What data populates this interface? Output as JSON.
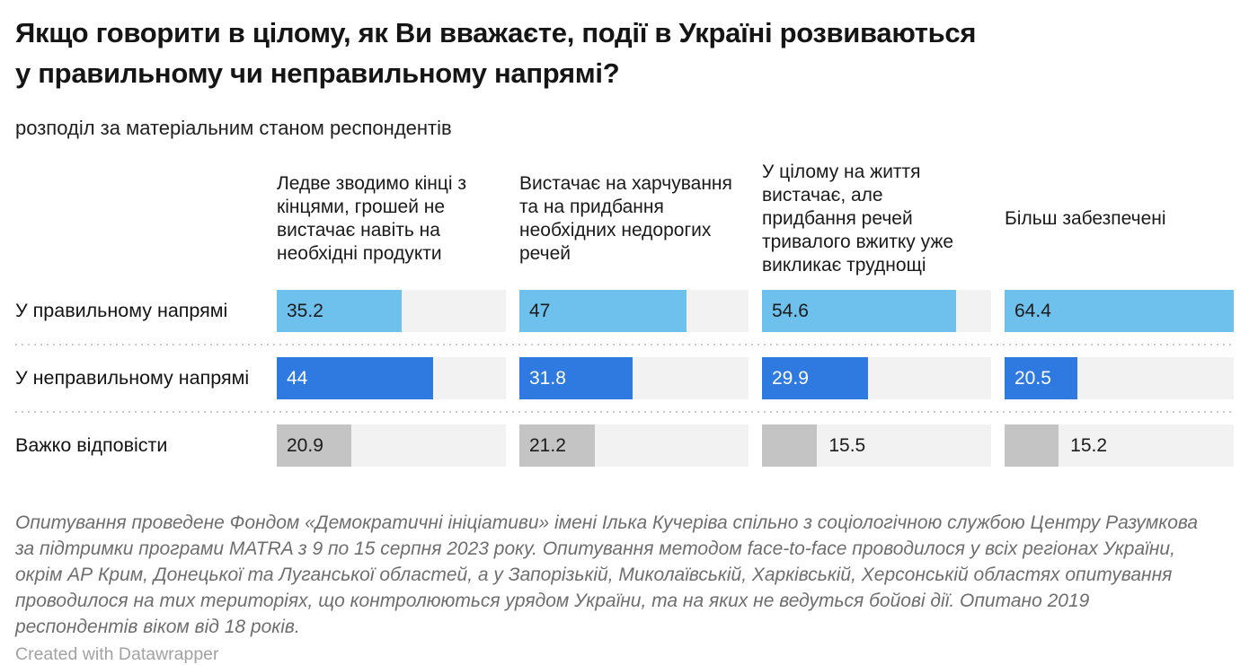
{
  "chart": {
    "title_line1": "Якщо говорити в цілому, як Ви вважаєте, події в Україні розвиваються",
    "title_line2": "у правильному чи неправильному напрямі?",
    "subtitle": "розподіл за матеріальним станом респондентів",
    "columns": [
      "Ледве зводимо кінці з кінцями, грошей не вистачає навіть на необхідні продукти",
      "Вистачає на харчування та на придбання необхідних недорогих речей",
      "У цілому на життя вистачає, але придбання речей тривалого вжитку уже викликає труднощі",
      "Більш забезпечені"
    ],
    "rows": [
      {
        "label": "У правильному напрямі",
        "color": "#6ec1ec",
        "value_color": "#1b1b1b",
        "values": [
          35.2,
          47,
          54.6,
          64.4
        ],
        "display": [
          "35.2",
          "47",
          "54.6",
          "64.4"
        ],
        "labels_outside": [
          false,
          false,
          false,
          false
        ]
      },
      {
        "label": "У неправильному напрямі",
        "color": "#2f7ae1",
        "value_color": "#ffffff",
        "values": [
          44,
          31.8,
          29.9,
          20.5
        ],
        "display": [
          "44",
          "31.8",
          "29.9",
          "20.5"
        ],
        "labels_outside": [
          false,
          false,
          false,
          false
        ]
      },
      {
        "label": "Важко відповісти",
        "color": "#c4c4c4",
        "value_color": "#1b1b1b",
        "values": [
          20.9,
          21.2,
          15.5,
          15.2
        ],
        "display": [
          "20.9",
          "21.2",
          "15.5",
          "15.2"
        ],
        "labels_outside": [
          false,
          false,
          true,
          true
        ]
      }
    ],
    "scale_max": 64.4,
    "notes": "Опитування проведене Фондом «Демократичні ініціативи» імені Ілька Кучеріва спільно з соціологічною службою Центру Разумкова за підтримки програми MATRA з 9 по 15 серпня 2023 року. Опитування методом face-to-face проводилося у всіх регіонах України, окрім АР Крим, Донецької та Луганської областей, а у Запорізькій, Миколаївській, Харківській, Херсонській областях опитування проводилося на тих територіях, що контролюються урядом України, та на яких не ведуться бойові дії. Опитано 2019 респондентів віком від 18 років.",
    "credit": "Created with Datawrapper"
  },
  "colors": {
    "track": "#f2f2f2",
    "separator": "#c9c9c9",
    "title": "#151515",
    "notes": "#6e6e6e",
    "credit": "#a2a2a2"
  },
  "chart_data": {
    "type": "bar",
    "orientation": "horizontal",
    "title": "Якщо говорити в цілому, як Ви вважаєте, події в Україні розвиваються у правильному чи неправильному напрямі?",
    "subtitle": "розподіл за матеріальним станом респондентів",
    "categories": [
      "Ледве зводимо кінці з кінцями, грошей не вистачає навіть на необхідні продукти",
      "Вистачає на харчування та на придбання необхідних недорогих речей",
      "У цілому на життя вистачає, але придбання речей тривалого вжитку уже викликає труднощі",
      "Більш забезпечені"
    ],
    "series": [
      {
        "name": "У правильному напрямі",
        "values": [
          35.2,
          47,
          54.6,
          64.4
        ],
        "color": "#6ec1ec"
      },
      {
        "name": "У неправильному напрямі",
        "values": [
          44,
          31.8,
          29.9,
          20.5
        ],
        "color": "#2f7ae1"
      },
      {
        "name": "Важко відповісти",
        "values": [
          20.9,
          21.2,
          15.5,
          15.2
        ],
        "color": "#c4c4c4"
      }
    ],
    "unit": "%",
    "xlim": [
      0,
      64.4
    ],
    "grid": false,
    "legend_position": "none",
    "value_labels": true
  }
}
